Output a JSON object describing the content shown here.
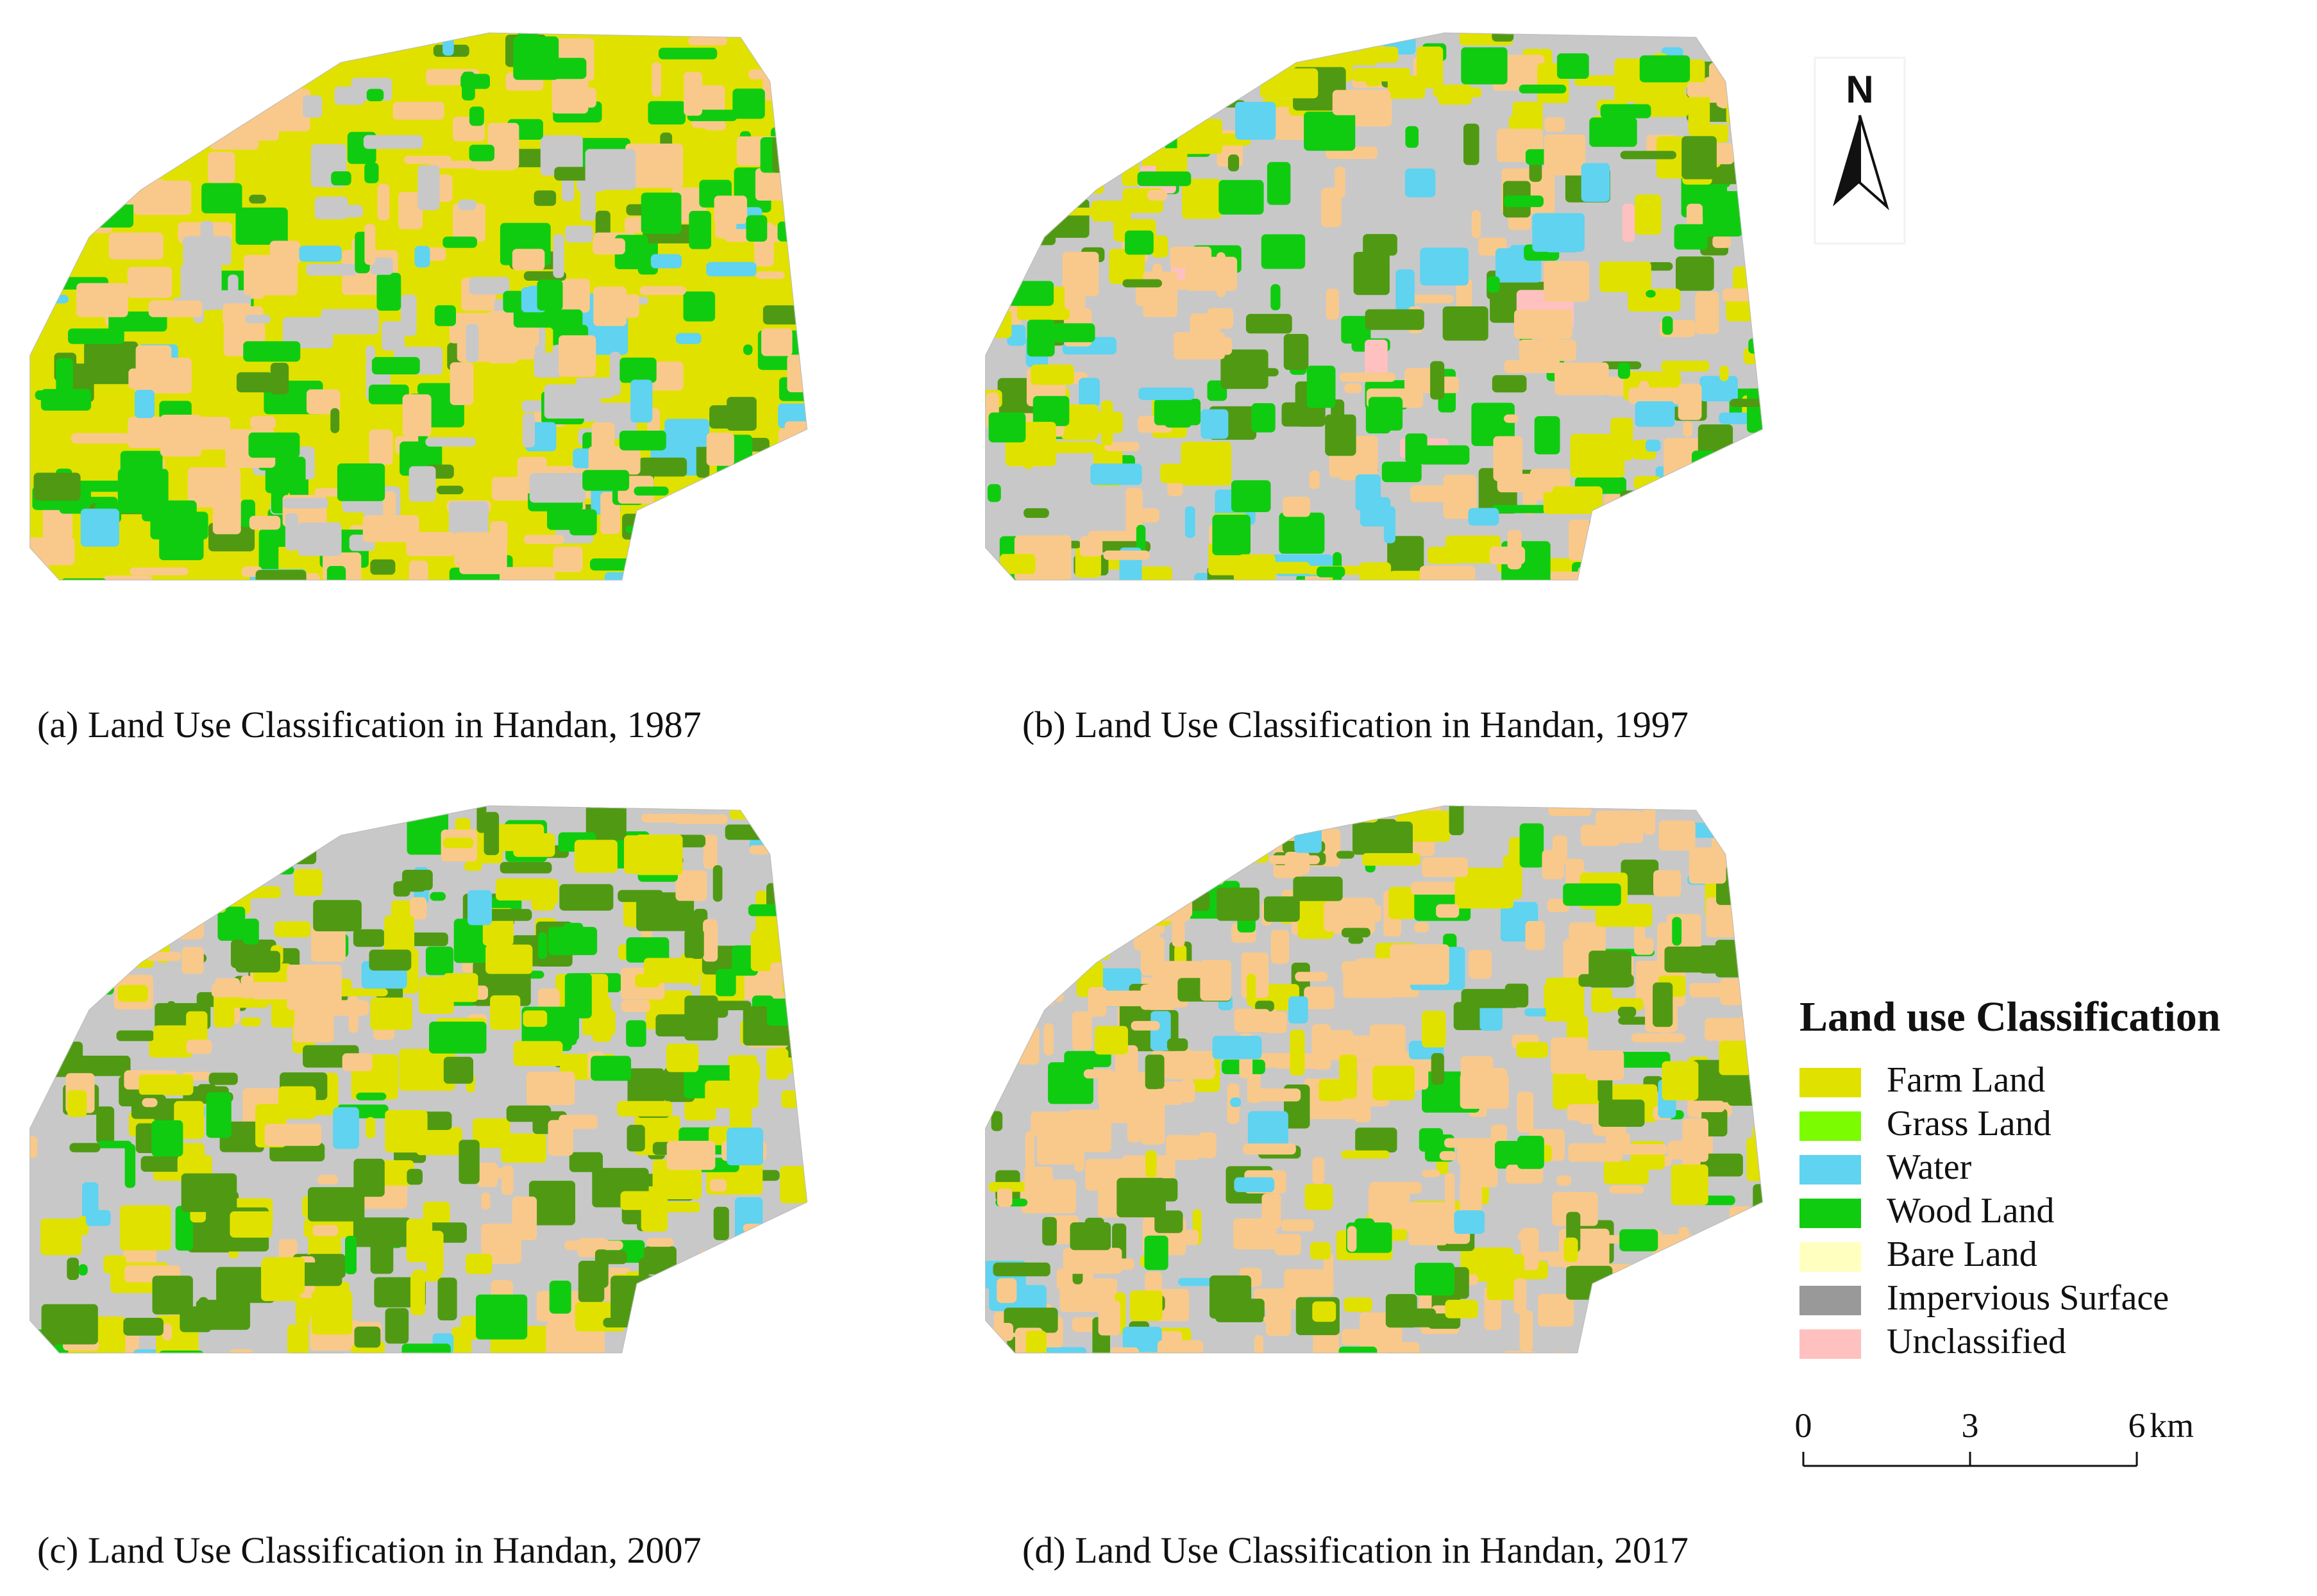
{
  "panels": [
    {
      "caption": "(a) Land Use Classification in Handan, 1987"
    },
    {
      "caption": "(b) Land Use Classification in Handan, 1997"
    },
    {
      "caption": "(c) Land Use Classification in Handan, 2007"
    },
    {
      "caption": "(d) Land Use Classification in Handan, 2017"
    }
  ],
  "north_arrow": {
    "label": "N"
  },
  "legend": {
    "title": "Land use Classification",
    "items": [
      {
        "label": "Farm Land",
        "color": "#e1e100"
      },
      {
        "label": "Grass Land",
        "color": "#7cfc00"
      },
      {
        "label": "Water",
        "color": "#5fd3f0"
      },
      {
        "label": "Wood Land",
        "color": "#10cc10"
      },
      {
        "label": "Bare Land",
        "color": "#ffffc0"
      },
      {
        "label": "Impervious Surface",
        "color": "#999999"
      },
      {
        "label": "Unclassified",
        "color": "#ffc0c0"
      }
    ]
  },
  "scale_bar": {
    "ticks": [
      0,
      3,
      6
    ],
    "unit": "km"
  }
}
